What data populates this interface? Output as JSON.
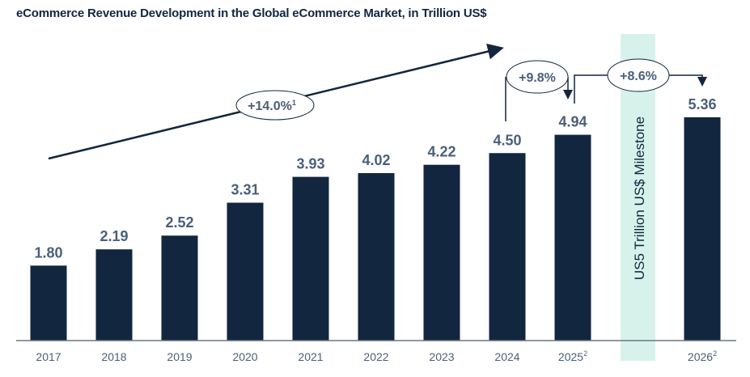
{
  "chart_data": {
    "type": "bar",
    "title": "eCommerce Revenue Development in the Global eCommerce Market, in Trillion US$",
    "categories": [
      "2017",
      "2018",
      "2019",
      "2020",
      "2021",
      "2022",
      "2023",
      "2024",
      "2025",
      "2026"
    ],
    "category_superscripts": [
      "",
      "",
      "",
      "",
      "",
      "",
      "",
      "",
      "2",
      "2"
    ],
    "values": [
      1.8,
      2.19,
      2.52,
      3.31,
      3.93,
      4.02,
      4.22,
      4.5,
      4.94,
      5.36
    ],
    "value_labels": [
      "1.80",
      "2.19",
      "2.52",
      "3.31",
      "3.93",
      "4.02",
      "4.22",
      "4.50",
      "4.94",
      "5.36"
    ],
    "ylim": [
      0,
      5.8
    ],
    "grid": false,
    "bar_color": "#13263f",
    "label_color": "#4a5f7a",
    "annotations": {
      "cagr": {
        "text": "+14.0%",
        "superscript": "1"
      },
      "growth_2025": {
        "text": "+9.8%"
      },
      "growth_2026": {
        "text": "+8.6%"
      },
      "milestone": {
        "text": "US5 Trillion US$ Milestone",
        "color": "#d7f2ea"
      }
    }
  }
}
